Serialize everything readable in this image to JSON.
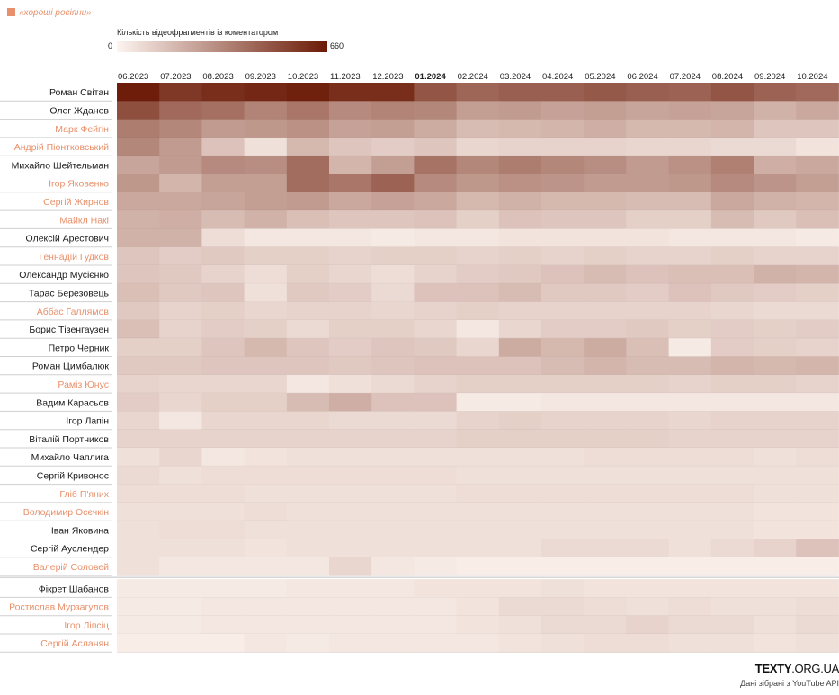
{
  "legend": {
    "category_label": "«хороші росіяни»",
    "category_color": "#e8906b",
    "scale_title": "Кількість відеофрагментів із коментатором",
    "scale_min": "0",
    "scale_max": "660"
  },
  "credit": {
    "logo_bold": "TEXTY",
    "logo_rest": ".ORG.UA",
    "source": "Дані зібрані з YouTube API"
  },
  "colors": {
    "low": "#fdf4ef",
    "high": "#6b1a06",
    "highlight_name": "#e8906b",
    "normal_name": "#1a1a1a"
  },
  "chart_data": {
    "type": "heatmap",
    "title": "",
    "value_range": [
      0,
      660
    ],
    "highlight_month": "01.2024",
    "x": [
      "06.2023",
      "07.2023",
      "08.2023",
      "09.2023",
      "10.2023",
      "11.2023",
      "12.2023",
      "01.2024",
      "02.2024",
      "03.2024",
      "04.2024",
      "05.2024",
      "06.2024",
      "07.2024",
      "08.2024",
      "09.2024",
      "10.2024"
    ],
    "rows": [
      {
        "name": "Роман Світан",
        "highlight": false,
        "values": [
          650,
          570,
          600,
          620,
          640,
          600,
          600,
          480,
          430,
          450,
          450,
          470,
          450,
          440,
          480,
          440,
          420
        ]
      },
      {
        "name": "Олег Жданов",
        "highlight": false,
        "values": [
          500,
          420,
          400,
          340,
          380,
          320,
          340,
          330,
          260,
          270,
          250,
          260,
          240,
          250,
          240,
          200,
          230
        ]
      },
      {
        "name": "Марк Фейгін",
        "highlight": true,
        "values": [
          360,
          330,
          270,
          280,
          300,
          250,
          260,
          220,
          170,
          180,
          190,
          210,
          180,
          180,
          190,
          140,
          140
        ]
      },
      {
        "name": "Андрій Піонтковський",
        "highlight": true,
        "values": [
          330,
          270,
          150,
          60,
          180,
          140,
          120,
          140,
          90,
          100,
          100,
          100,
          90,
          90,
          80,
          80,
          50
        ]
      },
      {
        "name": "Михайло Шейтельман",
        "highlight": false,
        "values": [
          240,
          270,
          320,
          310,
          410,
          190,
          260,
          390,
          330,
          360,
          330,
          310,
          270,
          300,
          350,
          210,
          230
        ]
      },
      {
        "name": "Ігор Яковенко",
        "highlight": true,
        "values": [
          280,
          190,
          260,
          260,
          410,
          380,
          440,
          320,
          280,
          300,
          290,
          270,
          270,
          280,
          320,
          290,
          260
        ]
      },
      {
        "name": "Сергій Жирнов",
        "highlight": true,
        "values": [
          230,
          230,
          240,
          260,
          270,
          230,
          250,
          230,
          180,
          200,
          180,
          180,
          170,
          170,
          230,
          200,
          190
        ]
      },
      {
        "name": "Майкл Накі",
        "highlight": true,
        "values": [
          200,
          210,
          170,
          200,
          160,
          140,
          140,
          150,
          110,
          150,
          140,
          140,
          110,
          110,
          170,
          130,
          160
        ]
      },
      {
        "name": "Олексій Арестович",
        "highlight": false,
        "values": [
          200,
          200,
          70,
          40,
          40,
          40,
          30,
          40,
          40,
          50,
          50,
          50,
          50,
          40,
          40,
          40,
          30
        ]
      },
      {
        "name": "Геннадій Гудков",
        "highlight": true,
        "values": [
          140,
          120,
          130,
          110,
          110,
          100,
          110,
          110,
          100,
          110,
          100,
          110,
          100,
          100,
          110,
          100,
          100
        ]
      },
      {
        "name": "Олександр Мусієнко",
        "highlight": false,
        "values": [
          140,
          130,
          100,
          70,
          110,
          90,
          70,
          100,
          120,
          130,
          150,
          170,
          150,
          160,
          160,
          200,
          190
        ]
      },
      {
        "name": "Тарас Березовець",
        "highlight": false,
        "values": [
          160,
          130,
          140,
          60,
          130,
          120,
          80,
          150,
          150,
          170,
          130,
          130,
          120,
          150,
          130,
          120,
          110
        ]
      },
      {
        "name": "Аббас Галлямов",
        "highlight": true,
        "values": [
          130,
          100,
          110,
          90,
          100,
          100,
          90,
          100,
          110,
          100,
          100,
          100,
          100,
          100,
          90,
          80,
          80
        ]
      },
      {
        "name": "Борис Тізенгаузен",
        "highlight": false,
        "values": [
          160,
          100,
          120,
          110,
          80,
          110,
          110,
          90,
          40,
          90,
          120,
          120,
          130,
          110,
          120,
          110,
          120
        ]
      },
      {
        "name": "Петро Черник",
        "highlight": false,
        "values": [
          110,
          110,
          140,
          180,
          140,
          120,
          140,
          130,
          90,
          220,
          180,
          220,
          160,
          30,
          120,
          110,
          100
        ]
      },
      {
        "name": "Роман Цимбалюк",
        "highlight": false,
        "values": [
          130,
          130,
          140,
          140,
          140,
          130,
          140,
          150,
          150,
          150,
          170,
          190,
          170,
          170,
          190,
          180,
          190
        ]
      },
      {
        "name": "Раміз Юнус",
        "highlight": true,
        "values": [
          100,
          90,
          90,
          90,
          40,
          60,
          80,
          100,
          110,
          110,
          110,
          110,
          110,
          100,
          110,
          110,
          100
        ]
      },
      {
        "name": "Вадим Карасьов",
        "highlight": false,
        "values": [
          120,
          90,
          110,
          110,
          170,
          210,
          150,
          150,
          30,
          30,
          40,
          40,
          40,
          40,
          40,
          40,
          40
        ]
      },
      {
        "name": "Ігор Лапін",
        "highlight": false,
        "values": [
          90,
          40,
          90,
          90,
          90,
          80,
          80,
          80,
          100,
          110,
          100,
          100,
          100,
          90,
          100,
          100,
          100
        ]
      },
      {
        "name": "Віталій Портников",
        "highlight": false,
        "values": [
          100,
          100,
          100,
          100,
          100,
          100,
          100,
          100,
          110,
          110,
          110,
          110,
          110,
          100,
          100,
          100,
          100
        ]
      },
      {
        "name": "Михайло Чаплига",
        "highlight": false,
        "values": [
          60,
          90,
          40,
          50,
          60,
          60,
          60,
          60,
          60,
          60,
          60,
          70,
          70,
          70,
          70,
          60,
          70
        ]
      },
      {
        "name": "Сергій Кривонос",
        "highlight": false,
        "values": [
          80,
          60,
          70,
          70,
          70,
          70,
          70,
          70,
          60,
          60,
          60,
          60,
          60,
          60,
          60,
          60,
          60
        ]
      },
      {
        "name": "Гліб П'яних",
        "highlight": true,
        "values": [
          70,
          70,
          70,
          60,
          60,
          60,
          60,
          60,
          70,
          70,
          70,
          70,
          70,
          70,
          70,
          60,
          60
        ]
      },
      {
        "name": "Володимир Осєчкін",
        "highlight": true,
        "values": [
          60,
          60,
          60,
          70,
          60,
          60,
          60,
          60,
          60,
          60,
          60,
          60,
          60,
          60,
          60,
          50,
          50
        ]
      },
      {
        "name": "Іван Яковина",
        "highlight": false,
        "values": [
          60,
          70,
          70,
          60,
          60,
          60,
          60,
          60,
          60,
          60,
          60,
          60,
          60,
          60,
          60,
          50,
          50
        ]
      },
      {
        "name": "Сергій Ауслендер",
        "highlight": false,
        "values": [
          60,
          60,
          60,
          50,
          60,
          60,
          60,
          60,
          60,
          60,
          80,
          80,
          80,
          60,
          80,
          100,
          150
        ]
      },
      {
        "name": "Валерій Соловей",
        "highlight": true,
        "values": [
          60,
          40,
          40,
          40,
          40,
          90,
          40,
          30,
          20,
          20,
          20,
          20,
          20,
          20,
          20,
          20,
          20
        ]
      },
      {
        "name": "Фікрет Шабанов",
        "highlight": false,
        "values": [
          30,
          30,
          30,
          30,
          40,
          40,
          40,
          50,
          50,
          50,
          60,
          50,
          50,
          50,
          50,
          50,
          50
        ]
      },
      {
        "name": "Ростислав Мурзагулов",
        "highlight": true,
        "values": [
          30,
          30,
          40,
          40,
          40,
          40,
          40,
          40,
          50,
          80,
          80,
          70,
          60,
          70,
          60,
          60,
          70
        ]
      },
      {
        "name": "Ігор Ліпсіц",
        "highlight": true,
        "values": [
          30,
          30,
          40,
          40,
          40,
          40,
          40,
          40,
          50,
          60,
          80,
          80,
          100,
          80,
          80,
          60,
          80
        ]
      },
      {
        "name": "Сергій Асланян",
        "highlight": true,
        "values": [
          20,
          20,
          20,
          40,
          30,
          40,
          40,
          40,
          40,
          50,
          60,
          70,
          70,
          60,
          60,
          50,
          60
        ]
      }
    ]
  }
}
